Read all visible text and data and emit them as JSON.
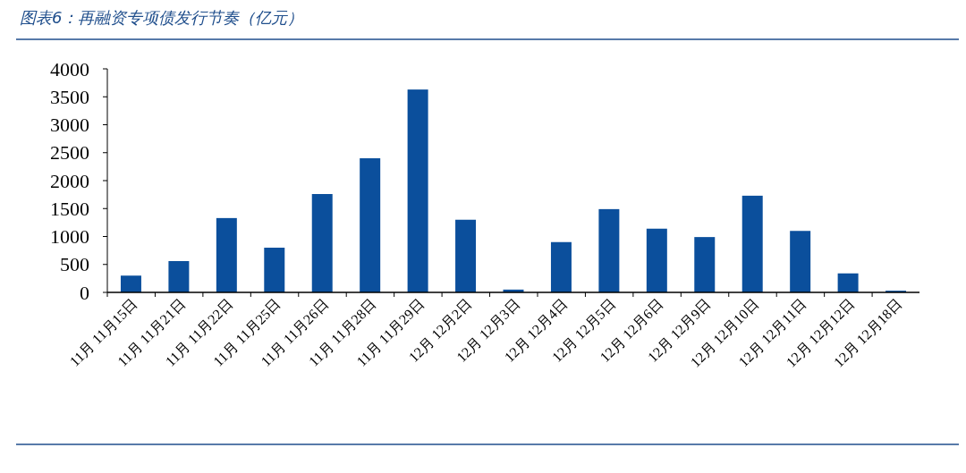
{
  "chart_data": {
    "type": "bar",
    "title": "图表6：再融资专项债发行节奏（亿元）",
    "categories": [
      "11月 11月15日",
      "11月 11月21日",
      "11月 11月22日",
      "11月 11月25日",
      "11月 11月26日",
      "11月 11月28日",
      "11月 11月29日",
      "12月 12月2日",
      "12月 12月3日",
      "12月 12月4日",
      "12月 12月5日",
      "12月 12月6日",
      "12月 12月9日",
      "12月 12月10日",
      "12月 12月11日",
      "12月 12月12日",
      "12月 12月18日"
    ],
    "values": [
      300,
      560,
      1330,
      800,
      1760,
      2400,
      3630,
      1300,
      50,
      900,
      1490,
      1140,
      990,
      1730,
      1100,
      340,
      30
    ],
    "color": "#0b4f9c",
    "ylim": [
      0,
      4000
    ],
    "yticks": [
      0,
      500,
      1000,
      1500,
      2000,
      2500,
      3000,
      3500,
      4000
    ],
    "grid": false
  }
}
